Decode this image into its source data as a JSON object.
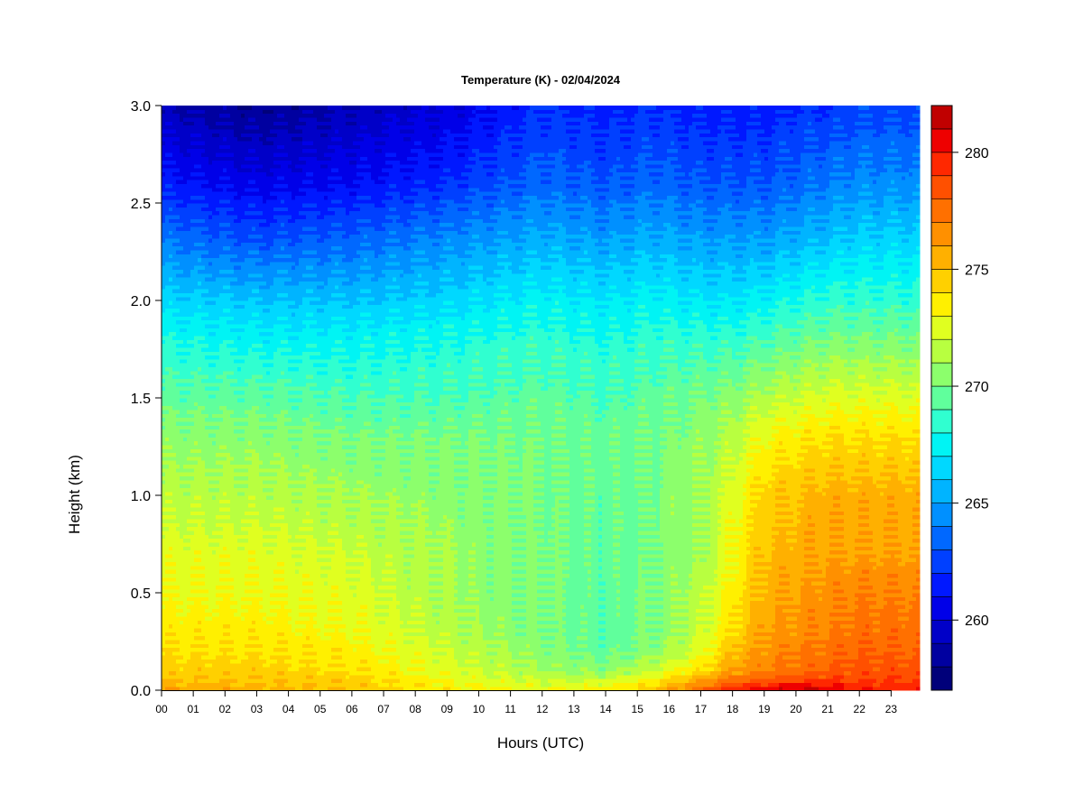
{
  "chart_data": {
    "type": "heatmap",
    "title": "Temperature (K) - 02/04/2024",
    "xlabel": "Hours (UTC)",
    "ylabel": "Height (km)",
    "x_ticks": [
      "00",
      "01",
      "02",
      "03",
      "04",
      "05",
      "06",
      "07",
      "08",
      "09",
      "10",
      "11",
      "12",
      "13",
      "14",
      "15",
      "16",
      "17",
      "18",
      "19",
      "20",
      "21",
      "22",
      "23"
    ],
    "y_ticks": [
      "0.0",
      "0.5",
      "1.0",
      "1.5",
      "2.0",
      "2.5",
      "3.0"
    ],
    "xlim": [
      0,
      23.9
    ],
    "ylim": [
      0,
      3.0
    ],
    "colorbar": {
      "label_ticks": [
        "260",
        "265",
        "270",
        "275",
        "280"
      ],
      "range": [
        257,
        282
      ],
      "levels": [
        257,
        258,
        259,
        260,
        261,
        262,
        263,
        264,
        265,
        266,
        267,
        268,
        269,
        270,
        271,
        272,
        273,
        274,
        275,
        276,
        277,
        278,
        279,
        280,
        281,
        282
      ],
      "colors": [
        "#00007a",
        "#0000a0",
        "#0000c8",
        "#0000e8",
        "#0018ff",
        "#0040ff",
        "#0068ff",
        "#0090ff",
        "#00b4ff",
        "#00d8ff",
        "#00f4f4",
        "#30ffd0",
        "#60ff9c",
        "#8cff6c",
        "#b8ff40",
        "#e0ff20",
        "#fff000",
        "#ffd000",
        "#ffb000",
        "#ff9000",
        "#ff7000",
        "#ff5000",
        "#ff2800",
        "#ee0000",
        "#c00000",
        "#8a0000"
      ]
    },
    "grid": false,
    "profile_heights_km": [
      0,
      0.05,
      0.1,
      0.2,
      0.3,
      0.5,
      0.7,
      1.0,
      1.3,
      1.5,
      1.8,
      2.0,
      2.3,
      2.6,
      3.0
    ],
    "profile_hours": [
      0,
      3,
      6,
      9,
      12,
      14,
      15.5,
      17,
      18,
      19,
      20,
      21,
      22,
      23.9
    ],
    "temperature_K": [
      [
        276,
        275,
        274.5,
        274,
        273.5,
        273,
        272.5,
        271.5,
        270.5,
        269.5,
        268,
        266.5,
        264,
        261.5,
        259
      ],
      [
        275.5,
        275,
        274.5,
        274,
        273.5,
        273,
        272.5,
        271.5,
        270.5,
        269.5,
        267.5,
        266,
        263,
        260.5,
        258
      ],
      [
        275,
        274.5,
        274,
        273.5,
        273,
        272.5,
        272,
        271,
        270,
        269,
        267.5,
        266,
        263.5,
        261,
        259
      ],
      [
        273.5,
        273,
        272.5,
        272,
        271.5,
        271,
        271,
        270.5,
        270,
        269,
        268,
        266.5,
        264.5,
        262,
        260
      ],
      [
        273,
        272,
        271,
        270.5,
        270,
        270,
        270,
        270,
        270,
        269.5,
        268.5,
        267.5,
        265.5,
        263.5,
        262
      ],
      [
        273.5,
        272,
        270.5,
        269.5,
        269.5,
        269.5,
        269.5,
        269.5,
        269.5,
        269,
        268,
        267,
        265,
        263,
        261.5
      ],
      [
        275,
        273.5,
        272,
        270.5,
        270,
        270,
        270,
        270,
        270,
        269.5,
        268.5,
        267.5,
        265.5,
        263.5,
        262
      ],
      [
        278,
        276,
        274,
        272.5,
        272,
        271.5,
        271,
        271,
        270.5,
        270,
        268.5,
        267,
        265,
        263,
        261.5
      ],
      [
        280,
        277.5,
        276,
        275,
        274,
        273.5,
        273,
        272.5,
        271.5,
        270.5,
        268.5,
        267,
        265,
        263,
        261.5
      ],
      [
        281,
        278.5,
        277,
        276.5,
        276,
        275.5,
        275,
        274.5,
        273,
        271.5,
        269,
        267.5,
        265,
        263,
        261.5
      ],
      [
        281.5,
        279,
        277.5,
        277,
        276.5,
        276,
        275.5,
        275,
        273.5,
        272,
        269.5,
        268,
        265.5,
        263.5,
        262
      ],
      [
        281,
        279,
        278,
        277.5,
        277,
        276.5,
        276,
        275.5,
        274,
        272.5,
        270,
        268.5,
        266,
        264,
        262
      ],
      [
        280,
        279,
        278.5,
        278,
        277.5,
        277,
        276,
        275.5,
        274,
        272.5,
        270,
        268.5,
        266.5,
        264.5,
        262.5
      ],
      [
        280,
        279,
        278.5,
        278,
        277.5,
        277,
        276,
        275.5,
        274,
        272.5,
        270,
        268.5,
        266.5,
        264.5,
        262.5
      ]
    ]
  }
}
